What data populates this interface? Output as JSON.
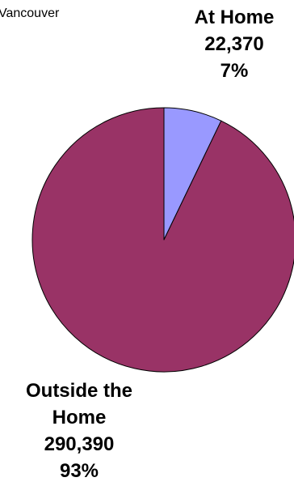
{
  "chart_data": {
    "type": "pie",
    "title": "Vancouver",
    "categories": [
      "At Home",
      "Outside the Home"
    ],
    "values": [
      22370,
      290390
    ],
    "colors": [
      "#9999FF",
      "#993366"
    ],
    "labels": [
      {
        "name_lines": [
          "At Home"
        ],
        "value_text": "22,370",
        "percent_text": "7%"
      },
      {
        "name_lines": [
          "Outside the",
          "Home"
        ],
        "value_text": "290,390",
        "percent_text": "93%"
      }
    ]
  }
}
